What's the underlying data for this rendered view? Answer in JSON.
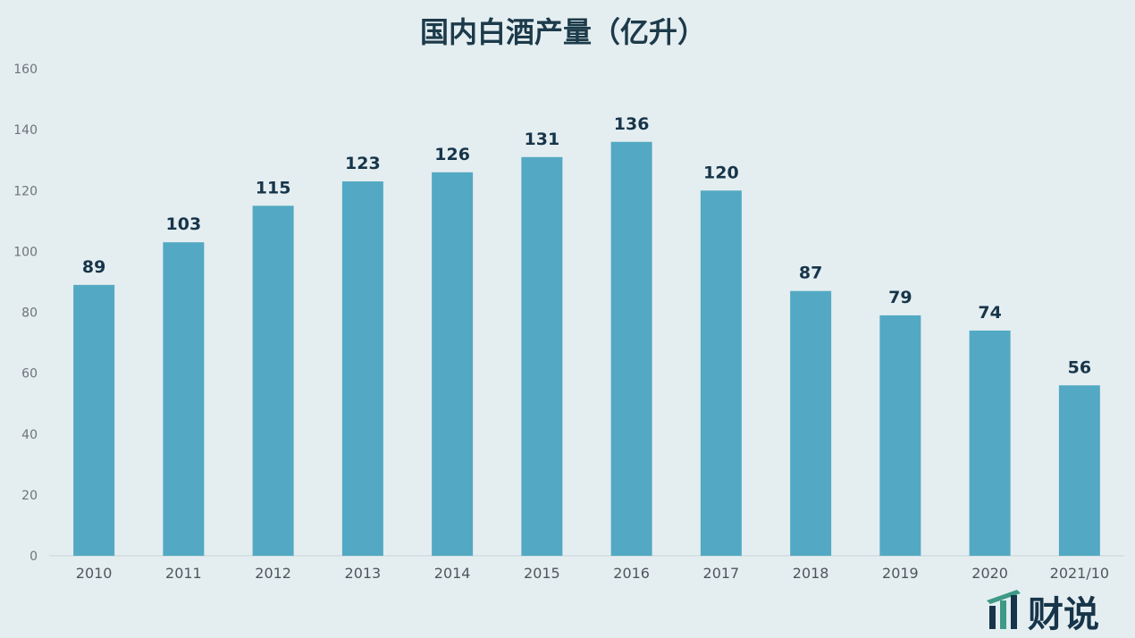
{
  "chart_data": {
    "type": "bar",
    "title": "国内白酒产量（亿升）",
    "categories": [
      "2010",
      "2011",
      "2012",
      "2013",
      "2014",
      "2015",
      "2016",
      "2017",
      "2018",
      "2019",
      "2020",
      "2021/10"
    ],
    "values": [
      89,
      103,
      115,
      123,
      126,
      131,
      136,
      120,
      87,
      79,
      74,
      56
    ],
    "data_labels": [
      "89",
      "103",
      "115",
      "123",
      "126",
      "131",
      "136",
      "120",
      "87",
      "79",
      "74",
      "56"
    ],
    "yticks": [
      "0",
      "20",
      "40",
      "60",
      "80",
      "100",
      "120",
      "140",
      "160"
    ],
    "ylim": [
      0,
      160
    ],
    "xlabel": "",
    "ylabel": "",
    "grid": false,
    "legend": "none",
    "bar_color": "#53a9c3"
  },
  "branding": {
    "logo_text": "财说",
    "logo_icon": "bar-chart-logo-icon",
    "logo_color": "#17354a",
    "logo_accent": "#3e9a86"
  }
}
